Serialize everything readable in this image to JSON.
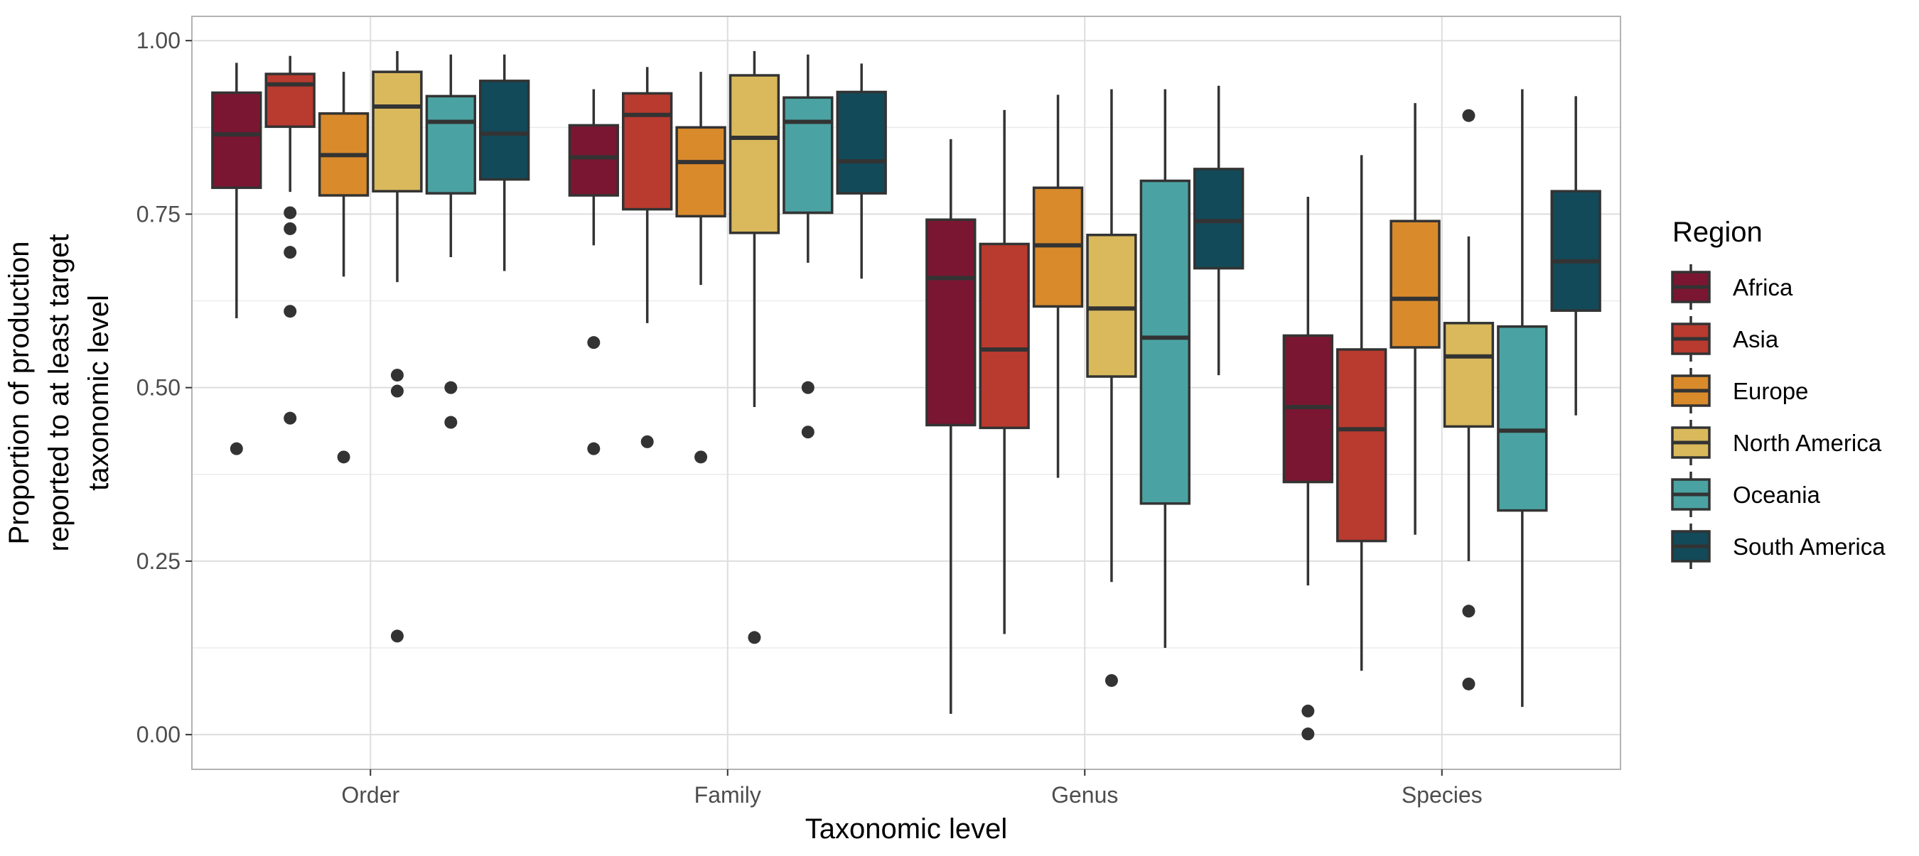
{
  "chart_data": {
    "type": "boxplot",
    "xlabel": "Taxonomic level",
    "ylabel_lines": [
      "Proportion of production",
      "reported to at least target",
      "taxonomic level"
    ],
    "ylim": [
      -0.05,
      1.035
    ],
    "yticks": [
      0.0,
      0.25,
      0.5,
      0.75,
      1.0
    ],
    "ytick_labels": [
      "0.00",
      "0.25",
      "0.50",
      "0.75",
      "1.00"
    ],
    "grid": true,
    "legend_position": "right",
    "legend_title": "Region",
    "categories": [
      "Order",
      "Family",
      "Genus",
      "Species"
    ],
    "series": [
      {
        "name": "Africa",
        "color": "#7a1631",
        "boxes": [
          {
            "min": 0.6,
            "q1": 0.788,
            "median": 0.865,
            "q3": 0.925,
            "max": 0.968,
            "outliers": [
              0.412
            ]
          },
          {
            "min": 0.705,
            "q1": 0.777,
            "median": 0.832,
            "q3": 0.878,
            "max": 0.93,
            "outliers": [
              0.565,
              0.412
            ]
          },
          {
            "min": 0.03,
            "q1": 0.446,
            "median": 0.658,
            "q3": 0.742,
            "max": 0.858,
            "outliers": []
          },
          {
            "min": 0.215,
            "q1": 0.364,
            "median": 0.472,
            "q3": 0.575,
            "max": 0.775,
            "outliers": [
              0.034,
              0.001
            ]
          }
        ]
      },
      {
        "name": "Asia",
        "color": "#b93a2e",
        "boxes": [
          {
            "min": 0.782,
            "q1": 0.876,
            "median": 0.937,
            "q3": 0.952,
            "max": 0.978,
            "outliers": [
              0.752,
              0.729,
              0.695,
              0.61,
              0.456
            ]
          },
          {
            "min": 0.593,
            "q1": 0.757,
            "median": 0.893,
            "q3": 0.924,
            "max": 0.962,
            "outliers": [
              0.422
            ]
          },
          {
            "min": 0.145,
            "q1": 0.442,
            "median": 0.555,
            "q3": 0.707,
            "max": 0.9,
            "outliers": []
          },
          {
            "min": 0.092,
            "q1": 0.279,
            "median": 0.44,
            "q3": 0.555,
            "max": 0.835,
            "outliers": []
          }
        ]
      },
      {
        "name": "Europe",
        "color": "#d98a2b",
        "boxes": [
          {
            "min": 0.66,
            "q1": 0.777,
            "median": 0.835,
            "q3": 0.895,
            "max": 0.955,
            "outliers": [
              0.4
            ]
          },
          {
            "min": 0.648,
            "q1": 0.747,
            "median": 0.825,
            "q3": 0.875,
            "max": 0.955,
            "outliers": [
              0.4
            ]
          },
          {
            "min": 0.37,
            "q1": 0.617,
            "median": 0.705,
            "q3": 0.788,
            "max": 0.922,
            "outliers": []
          },
          {
            "min": 0.288,
            "q1": 0.558,
            "median": 0.628,
            "q3": 0.74,
            "max": 0.91,
            "outliers": []
          }
        ]
      },
      {
        "name": "North America",
        "color": "#d9b95c",
        "boxes": [
          {
            "min": 0.652,
            "q1": 0.783,
            "median": 0.905,
            "q3": 0.955,
            "max": 0.985,
            "outliers": [
              0.518,
              0.495,
              0.142
            ]
          },
          {
            "min": 0.472,
            "q1": 0.723,
            "median": 0.86,
            "q3": 0.95,
            "max": 0.985,
            "outliers": [
              0.14
            ]
          },
          {
            "min": 0.22,
            "q1": 0.516,
            "median": 0.614,
            "q3": 0.72,
            "max": 0.93,
            "outliers": [
              0.078
            ]
          },
          {
            "min": 0.25,
            "q1": 0.444,
            "median": 0.545,
            "q3": 0.593,
            "max": 0.718,
            "outliers": [
              0.892,
              0.178,
              0.073
            ]
          }
        ]
      },
      {
        "name": "Oceania",
        "color": "#4aa3a2",
        "boxes": [
          {
            "min": 0.688,
            "q1": 0.78,
            "median": 0.883,
            "q3": 0.92,
            "max": 0.98,
            "outliers": [
              0.5,
              0.45
            ]
          },
          {
            "min": 0.68,
            "q1": 0.752,
            "median": 0.883,
            "q3": 0.918,
            "max": 0.98,
            "outliers": [
              0.5,
              0.436
            ]
          },
          {
            "min": 0.125,
            "q1": 0.333,
            "median": 0.572,
            "q3": 0.798,
            "max": 0.93,
            "outliers": []
          },
          {
            "min": 0.04,
            "q1": 0.323,
            "median": 0.438,
            "q3": 0.588,
            "max": 0.93,
            "outliers": []
          }
        ]
      },
      {
        "name": "South America",
        "color": "#124a59",
        "boxes": [
          {
            "min": 0.668,
            "q1": 0.8,
            "median": 0.866,
            "q3": 0.942,
            "max": 0.98,
            "outliers": []
          },
          {
            "min": 0.657,
            "q1": 0.78,
            "median": 0.826,
            "q3": 0.926,
            "max": 0.967,
            "outliers": []
          },
          {
            "min": 0.518,
            "q1": 0.672,
            "median": 0.74,
            "q3": 0.815,
            "max": 0.935,
            "outliers": []
          },
          {
            "min": 0.46,
            "q1": 0.611,
            "median": 0.682,
            "q3": 0.783,
            "max": 0.92,
            "outliers": []
          }
        ]
      }
    ]
  }
}
